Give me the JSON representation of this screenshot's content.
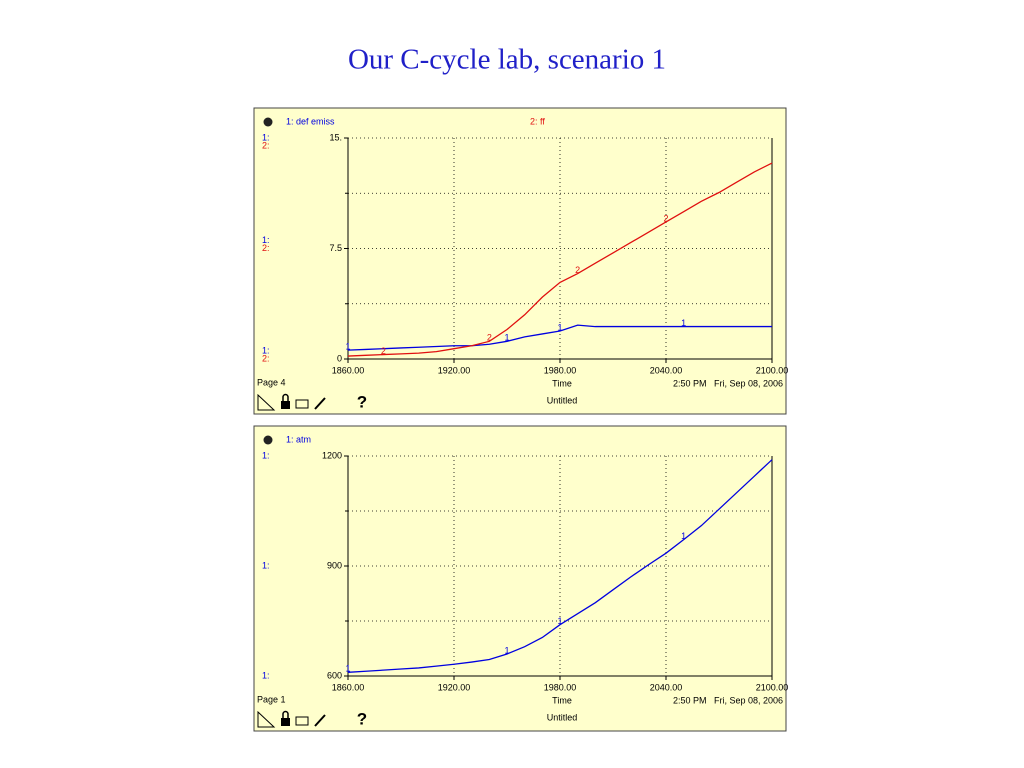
{
  "title": "Our C-cycle lab, scenario 1",
  "chart_data": [
    {
      "type": "line",
      "page": "Page 4",
      "xlabel": "Time",
      "timestamp": "2:50 PM   Fri, Sep 08, 2006",
      "file": "Untitled",
      "help": "?",
      "axis_keys": [
        "1:",
        "2:"
      ],
      "x": [
        1860,
        1870,
        1880,
        1890,
        1900,
        1910,
        1920,
        1930,
        1940,
        1950,
        1960,
        1970,
        1980,
        1990,
        2000,
        2010,
        2020,
        2030,
        2040,
        2050,
        2060,
        2070,
        2080,
        2090,
        2100
      ],
      "xlim": [
        1860,
        2100
      ],
      "xticks": [
        {
          "value": 1860,
          "label": "1860.00"
        },
        {
          "value": 1920,
          "label": "1920.00"
        },
        {
          "value": 1980,
          "label": "1980.00"
        },
        {
          "value": 2040,
          "label": "2040.00"
        },
        {
          "value": 2100,
          "label": "2100.00"
        }
      ],
      "ylim": [
        0,
        15
      ],
      "yticks": [
        0,
        7.5,
        {
          "value": 15,
          "label": "15."
        }
      ],
      "yminor": [
        3.75,
        11.25
      ],
      "grid": true,
      "series": [
        {
          "name": "1: def emiss",
          "key": "1",
          "color": "#0000e0",
          "values": [
            0.6,
            0.65,
            0.7,
            0.75,
            0.8,
            0.85,
            0.9,
            0.9,
            1.0,
            1.2,
            1.5,
            1.7,
            1.9,
            2.3,
            2.2,
            2.2,
            2.2,
            2.2,
            2.2,
            2.2,
            2.2,
            2.2,
            2.2,
            2.2,
            2.2
          ]
        },
        {
          "name": "2: ff",
          "key": "2",
          "color": "#e01010",
          "values": [
            0.2,
            0.25,
            0.3,
            0.35,
            0.4,
            0.5,
            0.7,
            0.9,
            1.2,
            2.0,
            3.0,
            4.2,
            5.2,
            5.8,
            6.5,
            7.2,
            7.9,
            8.6,
            9.3,
            10.0,
            10.7,
            11.3,
            12.0,
            12.7,
            13.3
          ]
        }
      ]
    },
    {
      "type": "line",
      "page": "Page 1",
      "xlabel": "Time",
      "timestamp": "2:50 PM   Fri, Sep 08, 2006",
      "file": "Untitled",
      "help": "?",
      "axis_keys": [
        "1:"
      ],
      "x": [
        1860,
        1870,
        1880,
        1890,
        1900,
        1910,
        1920,
        1930,
        1940,
        1950,
        1960,
        1970,
        1980,
        1990,
        2000,
        2010,
        2020,
        2030,
        2040,
        2050,
        2060,
        2070,
        2080,
        2090,
        2100
      ],
      "xlim": [
        1860,
        2100
      ],
      "xticks": [
        {
          "value": 1860,
          "label": "1860.00"
        },
        {
          "value": 1920,
          "label": "1920.00"
        },
        {
          "value": 1980,
          "label": "1980.00"
        },
        {
          "value": 2040,
          "label": "2040.00"
        },
        {
          "value": 2100,
          "label": "2100.00"
        }
      ],
      "ylim": [
        600,
        1200
      ],
      "yticks": [
        600,
        900,
        1200
      ],
      "yminor": [
        750,
        1050
      ],
      "grid": true,
      "series": [
        {
          "name": "1: atm",
          "key": "1",
          "color": "#0000e0",
          "values": [
            610,
            613,
            616,
            619,
            622,
            627,
            632,
            638,
            645,
            660,
            680,
            705,
            740,
            770,
            800,
            835,
            870,
            903,
            935,
            972,
            1010,
            1055,
            1100,
            1145,
            1190
          ]
        }
      ]
    }
  ]
}
